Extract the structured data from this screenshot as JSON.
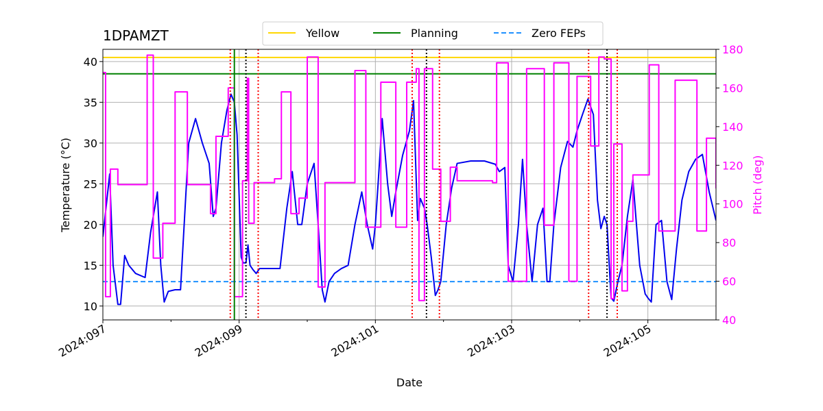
{
  "chart_data": {
    "type": "line",
    "title": "1DPAMZT",
    "xlabel": "Date",
    "ylabel": "Temperature ($^\\circ$C)",
    "ylabel_display": "Temperature (°C)",
    "y2label": "Pitch (deg)",
    "xlim": [
      97.0,
      106.0
    ],
    "ylim": [
      8.3,
      41.5
    ],
    "y2lim": [
      40,
      180
    ],
    "x_ticks": [
      97,
      99,
      101,
      103,
      105
    ],
    "x_tick_labels": [
      "2024:097",
      "2024:099",
      "2024:101",
      "2024:103",
      "2024:105"
    ],
    "x_minor_ticks": [
      98,
      100,
      102,
      104
    ],
    "y_ticks": [
      10,
      15,
      20,
      25,
      30,
      35,
      40
    ],
    "y_tick_labels": [
      "10",
      "15",
      "20",
      "25",
      "30",
      "35",
      "40"
    ],
    "y2_ticks": [
      40,
      60,
      80,
      100,
      120,
      140,
      160,
      180
    ],
    "y2_tick_labels": [
      "40",
      "60",
      "80",
      "100",
      "120",
      "140",
      "160",
      "180"
    ],
    "grid": true,
    "legend_position": "top-center",
    "legend": [
      {
        "label": "Yellow",
        "color": "#ffd700",
        "style": "solid"
      },
      {
        "label": "Planning",
        "color": "#008000",
        "style": "solid"
      },
      {
        "label": "Zero FEPs",
        "color": "#1e90ff",
        "style": "dashed"
      }
    ],
    "hlines": [
      {
        "name": "Yellow",
        "y": 40.5,
        "color": "#ffd700",
        "style": "solid"
      },
      {
        "name": "Planning",
        "y": 38.5,
        "color": "#008000",
        "style": "solid"
      },
      {
        "name": "Zero FEPs",
        "y": 13.0,
        "color": "#1e90ff",
        "style": "dashed"
      }
    ],
    "vlines": [
      {
        "x": 98.87,
        "color": "#ff0000",
        "style": "dotted"
      },
      {
        "x": 98.93,
        "color": "#008000",
        "style": "solid"
      },
      {
        "x": 99.1,
        "color": "#000000",
        "style": "dotted"
      },
      {
        "x": 99.28,
        "color": "#ff0000",
        "style": "dotted"
      },
      {
        "x": 101.54,
        "color": "#ff0000",
        "style": "dotted"
      },
      {
        "x": 101.75,
        "color": "#000000",
        "style": "dotted"
      },
      {
        "x": 101.94,
        "color": "#ff0000",
        "style": "dotted"
      },
      {
        "x": 104.13,
        "color": "#ff0000",
        "style": "dotted"
      },
      {
        "x": 104.4,
        "color": "#000000",
        "style": "dotted"
      },
      {
        "x": 104.55,
        "color": "#ff0000",
        "style": "dotted"
      }
    ],
    "series": [
      {
        "name": "1DPAMZT temperature",
        "axis": "left",
        "color": "#0000ee",
        "step": false,
        "x": [
          97.0,
          97.1,
          97.15,
          97.22,
          97.26,
          97.32,
          97.38,
          97.48,
          97.62,
          97.7,
          97.8,
          97.85,
          97.9,
          97.96,
          98.06,
          98.14,
          98.26,
          98.36,
          98.46,
          98.56,
          98.62,
          98.66,
          98.74,
          98.82,
          98.88,
          98.93,
          98.97,
          99.03,
          99.06,
          99.1,
          99.13,
          99.16,
          99.2,
          99.25,
          99.3,
          99.4,
          99.5,
          99.6,
          99.7,
          99.78,
          99.86,
          99.92,
          100.0,
          100.1,
          100.16,
          100.22,
          100.26,
          100.32,
          100.4,
          100.5,
          100.6,
          100.7,
          100.8,
          100.88,
          100.96,
          101.0,
          101.04,
          101.1,
          101.18,
          101.24,
          101.3,
          101.4,
          101.5,
          101.56,
          101.62,
          101.66,
          101.72,
          101.76,
          101.82,
          101.88,
          101.92,
          101.96,
          102.04,
          102.12,
          102.2,
          102.4,
          102.6,
          102.76,
          102.82,
          102.9,
          102.95,
          103.02,
          103.1,
          103.16,
          103.22,
          103.3,
          103.38,
          103.46,
          103.52,
          103.56,
          103.62,
          103.72,
          103.82,
          103.9,
          103.96,
          104.04,
          104.12,
          104.2,
          104.26,
          104.31,
          104.36,
          104.4,
          104.46,
          104.5,
          104.56,
          104.62,
          104.7,
          104.78,
          104.88,
          104.96,
          105.0,
          105.05,
          105.12,
          105.2,
          105.28,
          105.35,
          105.42,
          105.5,
          105.6,
          105.7,
          105.8,
          105.9,
          106.0
        ],
        "values": [
          18.5,
          26.2,
          15.0,
          10.2,
          10.2,
          16.2,
          15.0,
          14.0,
          13.5,
          19.0,
          24.0,
          15.0,
          10.5,
          11.8,
          12.0,
          12.0,
          30.0,
          33.0,
          30.0,
          27.5,
          21.0,
          22.0,
          30.0,
          34.0,
          36.0,
          35.0,
          31.0,
          16.0,
          15.3,
          15.3,
          17.5,
          15.0,
          14.5,
          14.0,
          14.6,
          14.6,
          14.6,
          14.6,
          22.0,
          26.5,
          20.0,
          20.0,
          25.0,
          27.5,
          20.0,
          12.0,
          10.5,
          13.0,
          14.0,
          14.6,
          15.0,
          20.0,
          24.0,
          20.0,
          17.0,
          20.0,
          25.0,
          33.0,
          25.0,
          21.0,
          24.0,
          28.5,
          31.5,
          35.2,
          20.5,
          23.2,
          22.0,
          20.0,
          16.0,
          11.3,
          12.0,
          13.0,
          20.0,
          24.5,
          27.5,
          27.8,
          27.8,
          27.4,
          26.5,
          27.0,
          15.0,
          13.0,
          20.0,
          28.0,
          20.0,
          13.0,
          20.0,
          22.0,
          13.0,
          13.0,
          20.0,
          27.0,
          30.2,
          29.5,
          31.5,
          33.5,
          35.4,
          33.5,
          23.0,
          19.5,
          21.0,
          20.0,
          11.0,
          10.6,
          13.0,
          15.0,
          21.0,
          25.5,
          15.0,
          11.5,
          11.0,
          10.5,
          20.0,
          20.5,
          13.0,
          10.8,
          17.0,
          23.0,
          26.5,
          28.0,
          28.6,
          24.0,
          20.5
        ]
      },
      {
        "name": "Pitch",
        "axis": "right",
        "color": "#ff00ff",
        "step": true,
        "x": [
          97.0,
          97.04,
          97.08,
          97.11,
          97.22,
          97.32,
          97.48,
          97.65,
          97.72,
          97.74,
          97.8,
          97.88,
          97.96,
          98.06,
          98.12,
          98.24,
          98.44,
          98.58,
          98.62,
          98.66,
          98.74,
          98.84,
          98.88,
          98.93,
          98.99,
          99.05,
          99.1,
          99.12,
          99.14,
          99.22,
          99.32,
          99.4,
          99.48,
          99.52,
          99.62,
          99.68,
          99.76,
          99.82,
          99.88,
          100.0,
          100.1,
          100.16,
          100.24,
          100.26,
          100.36,
          100.52,
          100.7,
          100.76,
          100.86,
          100.96,
          101.0,
          101.08,
          101.18,
          101.3,
          101.44,
          101.46,
          101.48,
          101.52,
          101.56,
          101.6,
          101.64,
          101.7,
          101.72,
          101.74,
          101.84,
          101.96,
          102.1,
          102.2,
          102.5,
          102.62,
          102.72,
          102.78,
          102.84,
          102.95,
          103.08,
          103.22,
          103.34,
          103.48,
          103.58,
          103.62,
          103.72,
          103.84,
          103.96,
          104.0,
          104.16,
          104.2,
          104.28,
          104.32,
          104.36,
          104.42,
          104.46,
          104.5,
          104.56,
          104.62,
          104.66,
          104.7,
          104.78,
          104.86,
          104.95,
          105.02,
          105.1,
          105.16,
          105.22,
          105.28,
          105.4,
          105.5,
          105.72,
          105.86,
          105.9,
          105.94,
          106.0
        ],
        "values": [
          168,
          52,
          52,
          118,
          110,
          110,
          110,
          177,
          177,
          72,
          72,
          90,
          90,
          158,
          158,
          110,
          110,
          95,
          95,
          135,
          135,
          160,
          160,
          52,
          52,
          112,
          112,
          165,
          90,
          111,
          111,
          111,
          111,
          113,
          158,
          158,
          95,
          95,
          103,
          176,
          176,
          57,
          57,
          111,
          111,
          111,
          169,
          169,
          88,
          88,
          88,
          163,
          163,
          88,
          88,
          163,
          163,
          163,
          163,
          170,
          50,
          50,
          170,
          170,
          118,
          91,
          119,
          112,
          112,
          112,
          111,
          173,
          173,
          60,
          60,
          170,
          170,
          89,
          89,
          173,
          173,
          60,
          166,
          166,
          130,
          130,
          176,
          176,
          175,
          175,
          51,
          131,
          131,
          55,
          55,
          91,
          115,
          115,
          115,
          172,
          172,
          86,
          86,
          86,
          164,
          164,
          86,
          134,
          134,
          134,
          108
        ]
      }
    ]
  }
}
